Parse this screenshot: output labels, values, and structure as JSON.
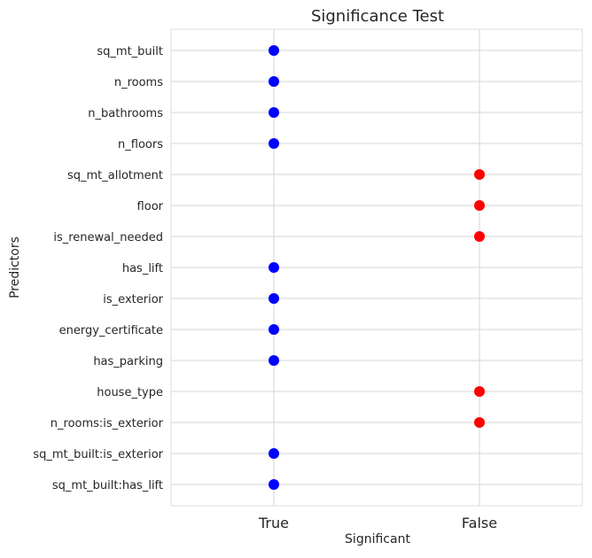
{
  "chart_data": {
    "type": "scatter",
    "title": "Significance Test",
    "xlabel": "Significant",
    "ylabel": "Predictors",
    "x_categories": [
      "True",
      "False"
    ],
    "grid": true,
    "points": [
      {
        "predictor": "sq_mt_built",
        "significant": "True"
      },
      {
        "predictor": "n_rooms",
        "significant": "True"
      },
      {
        "predictor": "n_bathrooms",
        "significant": "True"
      },
      {
        "predictor": "n_floors",
        "significant": "True"
      },
      {
        "predictor": "sq_mt_allotment",
        "significant": "False"
      },
      {
        "predictor": "floor",
        "significant": "False"
      },
      {
        "predictor": "is_renewal_needed",
        "significant": "False"
      },
      {
        "predictor": "has_lift",
        "significant": "True"
      },
      {
        "predictor": "is_exterior",
        "significant": "True"
      },
      {
        "predictor": "energy_certificate",
        "significant": "True"
      },
      {
        "predictor": "has_parking",
        "significant": "True"
      },
      {
        "predictor": "house_type",
        "significant": "False"
      },
      {
        "predictor": "n_rooms:is_exterior",
        "significant": "False"
      },
      {
        "predictor": "sq_mt_built:is_exterior",
        "significant": "True"
      },
      {
        "predictor": "sq_mt_built:has_lift",
        "significant": "True"
      }
    ],
    "colors": {
      "True": "#0000ff",
      "False": "#ff0000"
    }
  }
}
